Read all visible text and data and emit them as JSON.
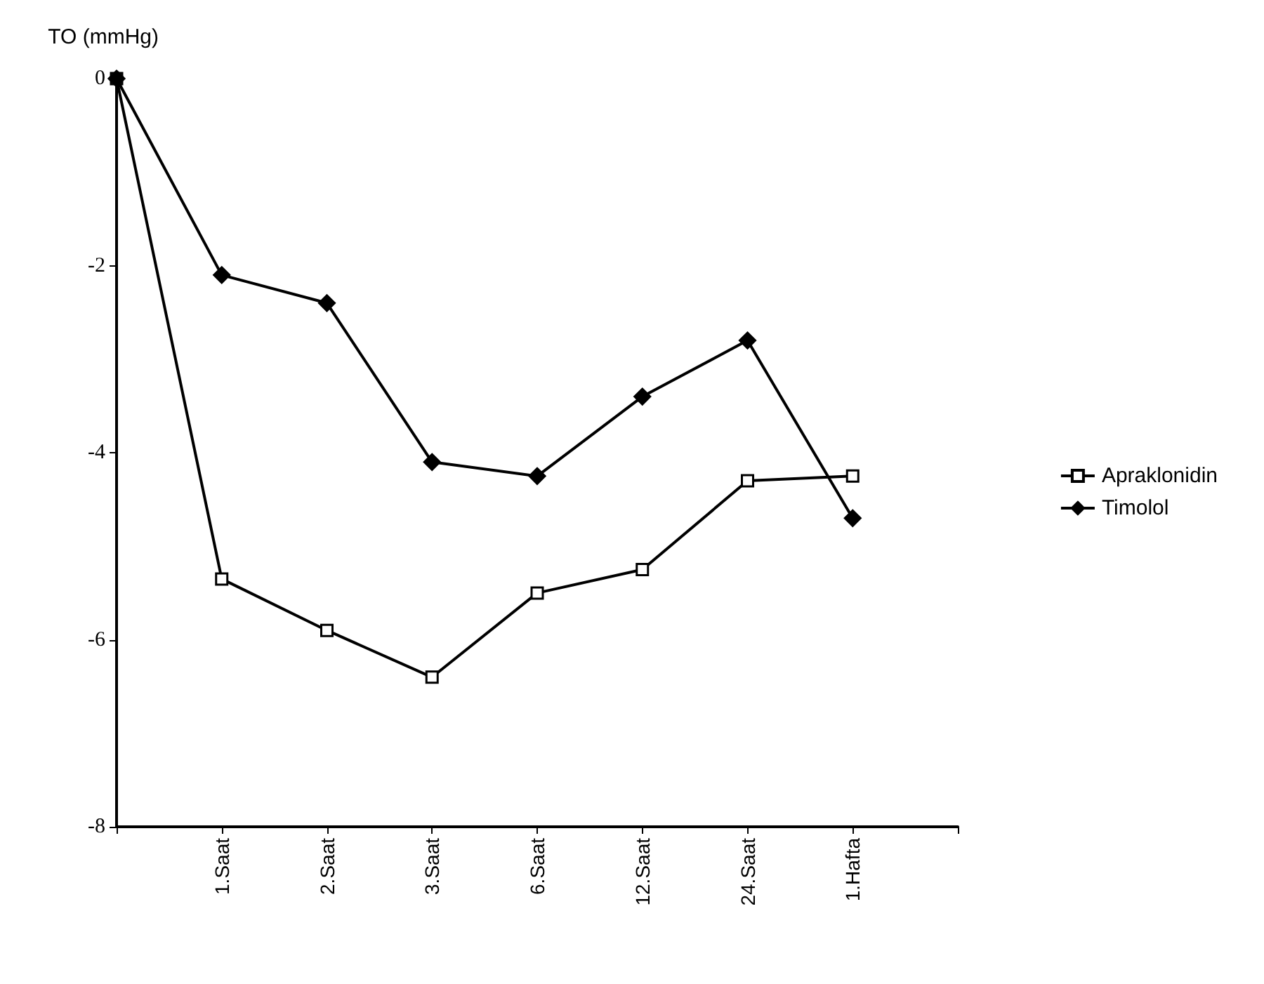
{
  "chart_data": {
    "type": "line",
    "ylabel": "TO (mmHg)",
    "categories": [
      null,
      "1.Saat",
      "2.Saat",
      "3.Saat",
      "6.Saat",
      "12.Saat",
      "24.Saat",
      "1.Hafta",
      null
    ],
    "series": [
      {
        "name": "Apraklonidin",
        "color": "#000000",
        "marker": "square",
        "values": [
          0,
          -5.35,
          -5.9,
          -6.4,
          -5.5,
          -5.25,
          -4.3,
          -4.25,
          null
        ]
      },
      {
        "name": "Timolol",
        "color": "#000000",
        "marker": "diamond",
        "values": [
          0,
          -2.1,
          -2.4,
          -4.1,
          -4.25,
          -3.4,
          -2.8,
          -4.7,
          null
        ]
      }
    ],
    "ylim": [
      -8,
      0
    ],
    "yticks": [
      0,
      -2,
      -4,
      -6,
      -8
    ],
    "grid": false,
    "legend": "right",
    "line_style": "solid"
  }
}
